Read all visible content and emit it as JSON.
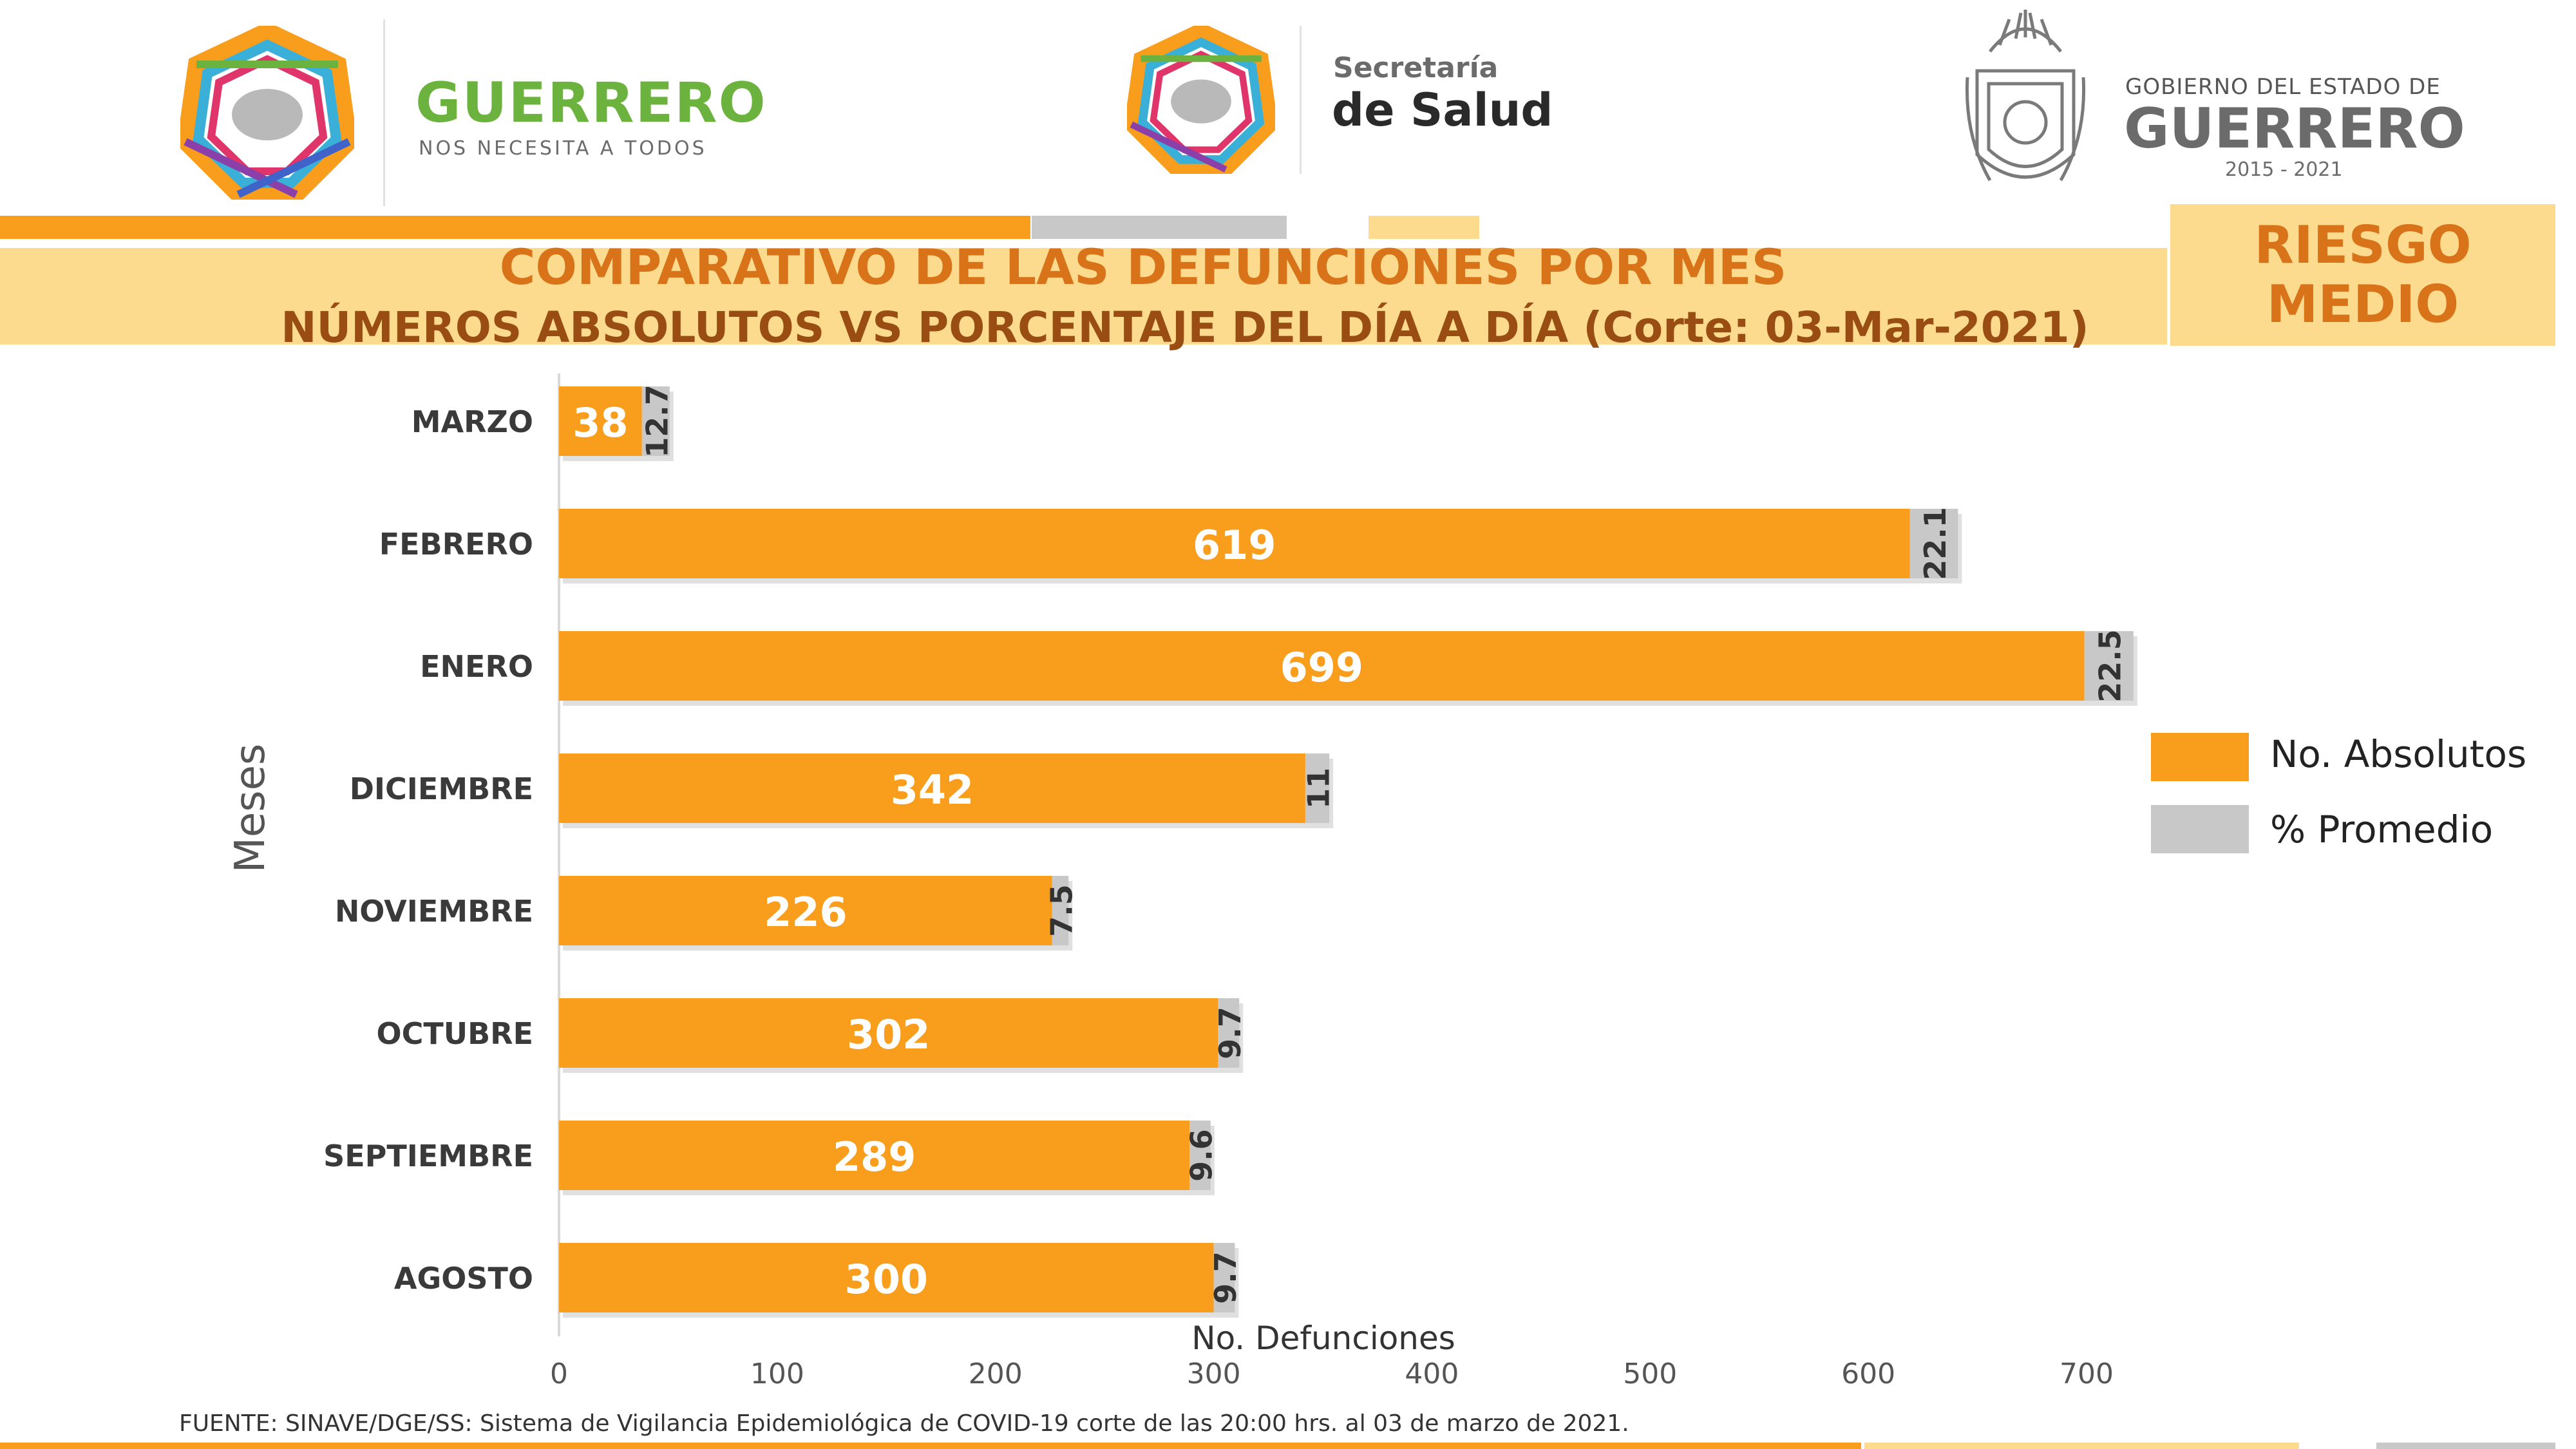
{
  "header": {
    "logo1": {
      "name": "GUERRERO",
      "tagline": "NOS NECESITA A TODOS"
    },
    "logo2": {
      "line1": "Secretaría",
      "line2": "de Salud"
    },
    "logo3": {
      "line1": "GOBIERNO DEL ESTADO DE",
      "line2": "GUERRERO",
      "years": "2015 - 2021"
    }
  },
  "title": {
    "main": "COMPARATIVO DE LAS DEFUNCIONES POR MES",
    "sub": "NÚMEROS ABSOLUTOS VS PORCENTAJE DEL DÍA A DÍA   (Corte: 03-Mar-2021)"
  },
  "risk": {
    "line1": "RIESGO",
    "line2": "MEDIO"
  },
  "colors": {
    "orange": "#f99d1c",
    "gray": "#c8c8c8",
    "band_light": "#fddb8e",
    "title_orange": "#d9731a",
    "title_brown": "#9a4d12"
  },
  "chart_data": {
    "type": "bar",
    "orientation": "horizontal",
    "categories": [
      "MARZO",
      "FEBRERO",
      "ENERO",
      "DICIEMBRE",
      "NOVIEMBRE",
      "OCTUBRE",
      "SEPTIEMBRE",
      "AGOSTO"
    ],
    "series": [
      {
        "name": "No. Absolutos",
        "color": "#f99d1c",
        "values": [
          38,
          619,
          699,
          342,
          226,
          302,
          289,
          300
        ]
      },
      {
        "name": "% Promedio",
        "color": "#c8c8c8",
        "values": [
          12.7,
          22.1,
          22.5,
          11,
          7.5,
          9.7,
          9.6,
          9.7
        ]
      }
    ],
    "data_labels": {
      "absolutos": [
        "38",
        "619",
        "699",
        "342",
        "226",
        "302",
        "289",
        "300"
      ],
      "promedio": [
        "12.7",
        "22.1",
        "22.5",
        "11",
        "7.5",
        "9.7",
        "9.6",
        "9.7"
      ]
    },
    "xlabel": "No. Defunciones",
    "ylabel": "Meses",
    "xlim": [
      0,
      700
    ],
    "xticks": [
      0,
      100,
      200,
      300,
      400,
      500,
      600,
      700
    ],
    "xtick_labels": [
      "0",
      "100",
      "200",
      "300",
      "400",
      "500",
      "600",
      "700"
    ],
    "legend_position": "right",
    "stacked": true
  },
  "footer": {
    "source": "FUENTE: SINAVE/DGE/SS: Sistema de Vigilancia Epidemiológica de COVID-19 corte de las 20:00 hrs. al 03 de  marzo de 2021."
  }
}
